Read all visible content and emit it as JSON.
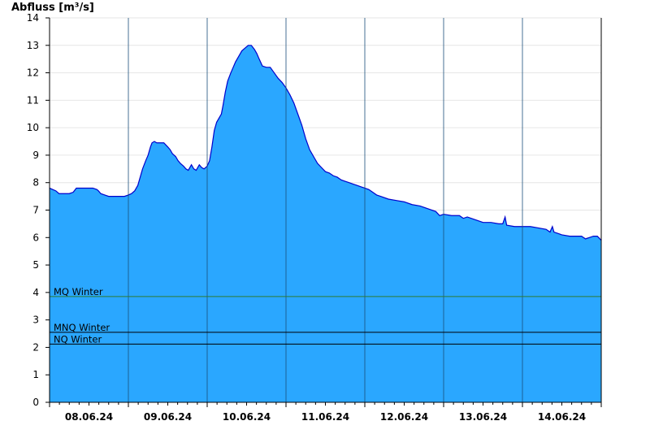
{
  "chart_data": {
    "type": "area",
    "title": "",
    "ylabel": "Abfluss [m³/s]",
    "xlabel": "",
    "ylim": [
      0,
      14
    ],
    "yticks": [
      0,
      1,
      2,
      3,
      4,
      5,
      6,
      7,
      8,
      9,
      10,
      11,
      12,
      13,
      14
    ],
    "xlim_days": [
      0,
      7
    ],
    "xtick_labels": [
      "08.06.24",
      "09.06.24",
      "10.06.24",
      "11.06.24",
      "12.06.24",
      "13.06.24",
      "14.06.24"
    ],
    "grid": true,
    "fill_color": "#2aa7ff",
    "line_color": "#0000cc",
    "series": [
      {
        "name": "",
        "x_days": [
          0.0,
          0.04,
          0.08,
          0.12,
          0.16,
          0.2,
          0.25,
          0.3,
          0.34,
          0.38,
          0.4,
          0.45,
          0.5,
          0.55,
          0.6,
          0.62,
          0.65,
          0.7,
          0.75,
          0.8,
          0.85,
          0.9,
          0.95,
          1.0,
          1.04,
          1.08,
          1.12,
          1.15,
          1.18,
          1.22,
          1.25,
          1.28,
          1.3,
          1.33,
          1.36,
          1.4,
          1.45,
          1.5,
          1.53,
          1.56,
          1.6,
          1.63,
          1.66,
          1.7,
          1.73,
          1.76,
          1.8,
          1.83,
          1.86,
          1.9,
          1.93,
          1.96,
          2.0,
          2.03,
          2.06,
          2.09,
          2.12,
          2.15,
          2.18,
          2.2,
          2.23,
          2.26,
          2.3,
          2.33,
          2.36,
          2.4,
          2.44,
          2.48,
          2.52,
          2.56,
          2.6,
          2.63,
          2.66,
          2.7,
          2.75,
          2.8,
          2.85,
          2.9,
          2.95,
          3.0,
          3.05,
          3.1,
          3.15,
          3.2,
          3.25,
          3.3,
          3.35,
          3.4,
          3.45,
          3.5,
          3.55,
          3.6,
          3.65,
          3.7,
          3.75,
          3.8,
          3.85,
          3.9,
          3.95,
          4.0,
          4.05,
          4.1,
          4.15,
          4.2,
          4.3,
          4.4,
          4.5,
          4.6,
          4.7,
          4.8,
          4.9,
          4.95,
          5.0,
          5.1,
          5.2,
          5.25,
          5.3,
          5.4,
          5.5,
          5.6,
          5.7,
          5.75,
          5.78,
          5.8,
          5.9,
          6.0,
          6.1,
          6.2,
          6.3,
          6.35,
          6.38,
          6.4,
          6.45,
          6.5,
          6.6,
          6.7,
          6.75,
          6.8,
          6.9,
          6.95,
          7.0
        ],
        "values": [
          7.8,
          7.75,
          7.7,
          7.6,
          7.6,
          7.6,
          7.6,
          7.65,
          7.8,
          7.8,
          7.8,
          7.8,
          7.8,
          7.8,
          7.75,
          7.7,
          7.6,
          7.55,
          7.5,
          7.5,
          7.5,
          7.5,
          7.5,
          7.55,
          7.6,
          7.7,
          7.9,
          8.2,
          8.5,
          8.8,
          9.0,
          9.3,
          9.45,
          9.5,
          9.45,
          9.45,
          9.45,
          9.3,
          9.2,
          9.05,
          8.95,
          8.8,
          8.7,
          8.6,
          8.5,
          8.45,
          8.65,
          8.5,
          8.45,
          8.65,
          8.55,
          8.5,
          8.6,
          8.8,
          9.3,
          9.9,
          10.2,
          10.35,
          10.5,
          10.8,
          11.3,
          11.7,
          12.0,
          12.2,
          12.4,
          12.6,
          12.8,
          12.9,
          13.0,
          13.0,
          12.85,
          12.7,
          12.5,
          12.25,
          12.2,
          12.2,
          12.0,
          11.8,
          11.65,
          11.45,
          11.2,
          10.9,
          10.5,
          10.1,
          9.6,
          9.2,
          8.95,
          8.7,
          8.55,
          8.4,
          8.35,
          8.25,
          8.2,
          8.1,
          8.05,
          8.0,
          7.95,
          7.9,
          7.85,
          7.8,
          7.75,
          7.65,
          7.55,
          7.5,
          7.4,
          7.35,
          7.3,
          7.2,
          7.15,
          7.05,
          6.95,
          6.8,
          6.85,
          6.8,
          6.8,
          6.7,
          6.75,
          6.65,
          6.55,
          6.55,
          6.5,
          6.5,
          6.75,
          6.45,
          6.4,
          6.4,
          6.4,
          6.35,
          6.3,
          6.2,
          6.4,
          6.2,
          6.15,
          6.1,
          6.05,
          6.05,
          6.05,
          5.95,
          6.05,
          6.05,
          5.9
        ]
      }
    ],
    "reference_lines": [
      {
        "label": "MQ Winter",
        "value": 3.85,
        "color": "#2e7d32"
      },
      {
        "label": "MNQ Winter",
        "value": 2.55,
        "color": "#000000"
      },
      {
        "label": "NQ Winter",
        "value": 2.12,
        "color": "#000000"
      }
    ]
  }
}
